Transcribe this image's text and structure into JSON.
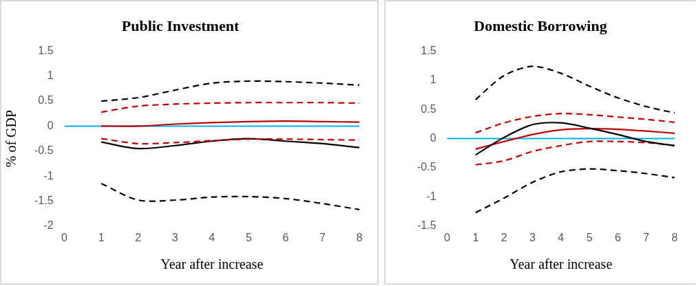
{
  "chart_data": [
    {
      "type": "line",
      "title": "Public Investment",
      "xlabel": "Year after increase",
      "ylabel": "% of GDP",
      "categories": [
        "0",
        "1",
        "2",
        "3",
        "4",
        "5",
        "6",
        "7",
        "8"
      ],
      "ylim": [
        -2,
        1.5
      ],
      "yticks": [
        -2,
        -1.5,
        -1,
        -0.5,
        0,
        0.5,
        1,
        1.5
      ],
      "grid": false,
      "legend": false,
      "ref_lines": [
        {
          "axis": "y",
          "value": 0,
          "color": "#00b0f0"
        }
      ],
      "series": [
        {
          "color": "#000000",
          "line_style": "dashed",
          "values": [
            null,
            0.5,
            0.57,
            0.72,
            0.86,
            0.9,
            0.89,
            0.86,
            0.82
          ]
        },
        {
          "color": "#c00000",
          "line_style": "dashed",
          "values": [
            null,
            0.28,
            0.4,
            0.44,
            0.46,
            0.47,
            0.47,
            0.47,
            0.46
          ]
        },
        {
          "color": "#c00000",
          "line_style": "solid",
          "values": [
            null,
            0,
            0,
            0.04,
            0.07,
            0.09,
            0.1,
            0.09,
            0.08
          ]
        },
        {
          "color": "#c00000",
          "line_style": "dashed",
          "values": [
            null,
            -0.25,
            -0.35,
            -0.33,
            -0.29,
            -0.26,
            -0.26,
            -0.27,
            -0.28
          ]
        },
        {
          "color": "#000000",
          "line_style": "solid",
          "values": [
            null,
            -0.32,
            -0.45,
            -0.39,
            -0.3,
            -0.25,
            -0.3,
            -0.35,
            -0.43
          ]
        },
        {
          "color": "#000000",
          "line_style": "dashed",
          "values": [
            null,
            -1.15,
            -1.48,
            -1.48,
            -1.42,
            -1.41,
            -1.45,
            -1.55,
            -1.67
          ]
        }
      ]
    },
    {
      "type": "line",
      "title": "Domestic Borrowing",
      "xlabel": "Year after increase",
      "categories": [
        "0",
        "1",
        "2",
        "3",
        "4",
        "5",
        "6",
        "7",
        "8"
      ],
      "ylim": [
        -1.5,
        1.5
      ],
      "yticks": [
        -1.5,
        -1,
        -0.5,
        0,
        0.5,
        1,
        1.5
      ],
      "grid": false,
      "legend": false,
      "ref_lines": [
        {
          "axis": "y",
          "value": 0,
          "color": "#00b0f0"
        }
      ],
      "series": [
        {
          "color": "#000000",
          "line_style": "dashed",
          "values": [
            null,
            0.67,
            1.08,
            1.24,
            1.12,
            0.9,
            0.7,
            0.55,
            0.44
          ]
        },
        {
          "color": "#c00000",
          "line_style": "dashed",
          "values": [
            null,
            0.1,
            0.27,
            0.38,
            0.43,
            0.41,
            0.37,
            0.33,
            0.28
          ]
        },
        {
          "color": "#000000",
          "line_style": "solid",
          "values": [
            null,
            -0.28,
            0.02,
            0.24,
            0.27,
            0.18,
            0.07,
            -0.05,
            -0.12
          ]
        },
        {
          "color": "#c00000",
          "line_style": "solid",
          "values": [
            null,
            -0.18,
            -0.05,
            0.07,
            0.15,
            0.17,
            0.16,
            0.13,
            0.09
          ]
        },
        {
          "color": "#c00000",
          "line_style": "dashed",
          "values": [
            null,
            -0.45,
            -0.38,
            -0.22,
            -0.12,
            -0.05,
            -0.05,
            -0.07,
            -0.12
          ]
        },
        {
          "color": "#000000",
          "line_style": "dashed",
          "values": [
            null,
            -1.27,
            -1.02,
            -0.75,
            -0.57,
            -0.52,
            -0.55,
            -0.6,
            -0.67
          ]
        }
      ]
    }
  ]
}
